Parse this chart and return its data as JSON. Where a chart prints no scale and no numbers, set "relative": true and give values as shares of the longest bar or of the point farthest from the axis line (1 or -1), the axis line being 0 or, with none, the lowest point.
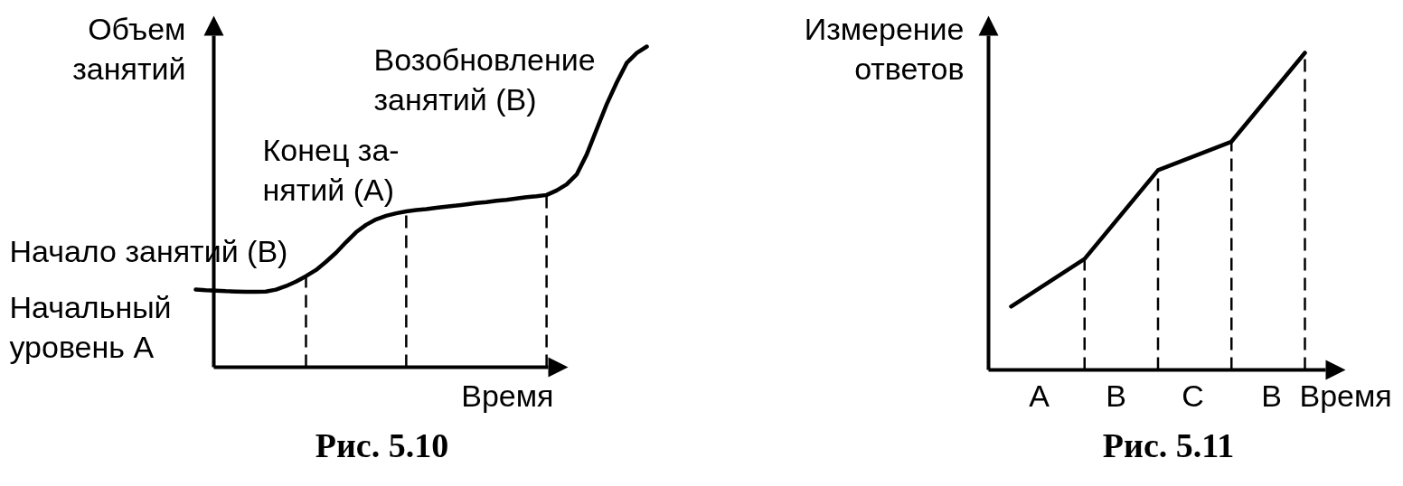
{
  "chart_data": [
    {
      "type": "line",
      "title": "Рис. 5.10",
      "xlabel": "Время",
      "ylabel": "Объем\nзанятий",
      "relative": true,
      "categories": [
        null,
        null,
        null,
        null,
        null,
        null,
        null,
        null,
        null,
        null,
        null,
        null,
        null,
        null,
        null,
        null,
        null,
        null,
        null,
        null,
        null,
        null,
        null,
        null,
        null,
        null,
        null,
        null,
        null,
        null,
        null,
        null,
        null,
        null,
        null,
        null,
        null,
        null,
        null,
        null,
        null,
        null,
        null,
        null,
        null,
        null
      ],
      "values": [
        0.242,
        0.24,
        0.239,
        0.237,
        0.236,
        0.235,
        0.235,
        0.236,
        0.242,
        0.253,
        0.267,
        0.284,
        0.303,
        0.329,
        0.357,
        0.39,
        0.421,
        0.444,
        0.461,
        0.472,
        0.48,
        0.486,
        0.49,
        0.493,
        0.497,
        0.501,
        0.504,
        0.508,
        0.512,
        0.515,
        0.519,
        0.522,
        0.526,
        0.53,
        0.533,
        0.537,
        0.551,
        0.57,
        0.601,
        0.663,
        0.742,
        0.82,
        0.888,
        0.949,
        0.98,
        1.0
      ],
      "color": "#000000",
      "annotations": [
        "Возобновление\nзанятий (B)",
        "Конец за-\nнятий (A)",
        "Начало занятий (B)",
        "Начальный\nуровень A"
      ]
    },
    {
      "type": "line",
      "title": "Рис. 5.11",
      "xlabel": "Время",
      "ylabel": "Измерение\nответов",
      "relative": true,
      "categories": [
        null,
        null,
        null,
        null,
        null
      ],
      "values": [
        0.2,
        0.35,
        0.63,
        0.72,
        1.0
      ],
      "color": "#000000",
      "annotations": [
        "A",
        "B",
        "C",
        "B"
      ]
    }
  ]
}
